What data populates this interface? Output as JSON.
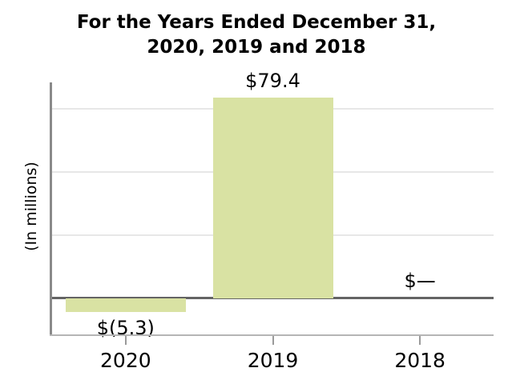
{
  "title": {
    "line1": "For the Years Ended December 31,",
    "line2": "2020, 2019 and 2018"
  },
  "y_axis": {
    "label": "(In millions)"
  },
  "chart_data": {
    "type": "bar",
    "title": "For the Years Ended December 31, 2020, 2019 and 2018",
    "xlabel": "",
    "ylabel": "(In millions)",
    "categories": [
      "2020",
      "2019",
      "2018"
    ],
    "values": [
      -5.3,
      79.4,
      0
    ],
    "value_labels": [
      "$(5.3)",
      "$79.4",
      "$—"
    ],
    "ylim": [
      -14.3,
      85.3
    ],
    "gridline_values": [
      25,
      50,
      75
    ],
    "grid": "horizontal-only",
    "legend": "none",
    "colors": {
      "bar_fill": "#d9e2a3",
      "zero_line": "#646464",
      "gridline": "#e7e7e7",
      "left_spine": "#8a8a8a",
      "bottom_spine": "#b5b5b5",
      "tick": "#9a9a9a",
      "text": "#000000",
      "background": "#ffffff"
    }
  }
}
